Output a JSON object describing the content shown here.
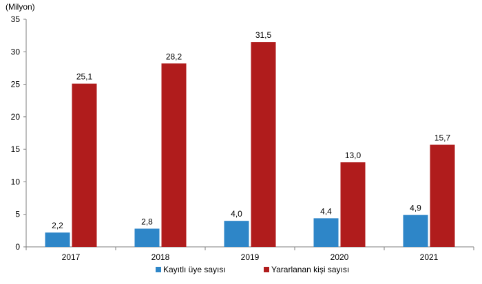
{
  "chart_data": {
    "type": "bar",
    "unit_label": "(Milyon)",
    "categories": [
      "2017",
      "2018",
      "2019",
      "2020",
      "2021"
    ],
    "series": [
      {
        "name": "Kayıtlı üye sayısı",
        "color": "#2E86C8",
        "values": [
          2.2,
          2.8,
          4.0,
          4.4,
          4.9
        ],
        "labels": [
          "2,2",
          "2,8",
          "4,0",
          "4,4",
          "4,9"
        ]
      },
      {
        "name": "Yararlanan kişi sayısı",
        "color": "#B01C1C",
        "values": [
          25.1,
          28.2,
          31.5,
          13.0,
          15.7
        ],
        "labels": [
          "25,1",
          "28,2",
          "31,5",
          "13,0",
          "15,7"
        ]
      }
    ],
    "ylim": [
      0,
      35
    ],
    "yticks": [
      0,
      5,
      10,
      15,
      20,
      25,
      30,
      35
    ],
    "grid": false,
    "legend_position": "bottom"
  }
}
